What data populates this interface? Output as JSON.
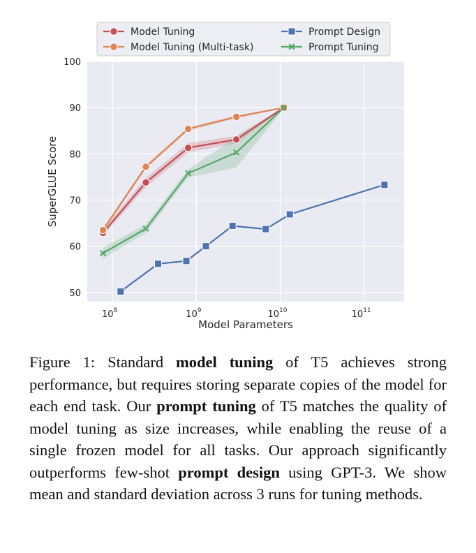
{
  "chart_data": {
    "type": "line",
    "xlabel": "Model Parameters",
    "ylabel": "SuperGLUE Score",
    "x_scale": "log",
    "xlim": [
      50000000,
      300000000000
    ],
    "ylim": [
      48,
      100
    ],
    "x_ticks": [
      {
        "value": 100000000,
        "base": "10",
        "exp": "8"
      },
      {
        "value": 1000000000,
        "base": "10",
        "exp": "9"
      },
      {
        "value": 10000000000,
        "base": "10",
        "exp": "10"
      },
      {
        "value": 100000000000,
        "base": "10",
        "exp": "11"
      }
    ],
    "y_ticks": [
      50,
      60,
      70,
      80,
      90,
      100
    ],
    "grid": true,
    "legend_position": "top",
    "series": [
      {
        "name": "Model Tuning",
        "color": "#c44e52",
        "marker": "circle",
        "x": [
          77000000,
          250000000,
          800000000,
          3000000000,
          11000000000
        ],
        "y": [
          62.9,
          73.8,
          81.3,
          83.1,
          90.0
        ],
        "band_low": [
          62.2,
          72.8,
          80.3,
          82.3,
          89.9
        ],
        "band_high": [
          63.6,
          74.8,
          82.3,
          83.9,
          90.1
        ]
      },
      {
        "name": "Model Tuning (Multi-task)",
        "color": "#dd8452",
        "marker": "circle",
        "x": [
          77000000,
          250000000,
          800000000,
          3000000000,
          11000000000
        ],
        "y": [
          63.5,
          77.2,
          85.4,
          88.0,
          90.0
        ],
        "band_low": [
          63.0,
          76.8,
          85.0,
          87.7,
          89.9
        ],
        "band_high": [
          64.0,
          77.6,
          85.8,
          88.3,
          90.1
        ]
      },
      {
        "name": "Prompt Design",
        "color": "#4c72b0",
        "marker": "square",
        "x": [
          125000000,
          350000000,
          760000000,
          1300000000,
          2700000000,
          6700000000,
          13000000000,
          175000000000
        ],
        "y": [
          50.2,
          56.2,
          56.8,
          60.0,
          64.4,
          63.7,
          66.9,
          73.3
        ]
      },
      {
        "name": "Prompt Tuning",
        "color": "#55a868",
        "marker": "x",
        "x": [
          77000000,
          250000000,
          800000000,
          3000000000,
          11000000000
        ],
        "y": [
          58.5,
          63.8,
          75.8,
          80.3,
          90.0
        ],
        "band_low": [
          57.3,
          62.9,
          74.9,
          77.0,
          89.8
        ],
        "band_high": [
          59.7,
          64.7,
          76.7,
          83.6,
          90.2
        ]
      }
    ]
  },
  "caption": {
    "segments": [
      {
        "text": "Figure 1: Standard ",
        "bold": false
      },
      {
        "text": "model tuning",
        "bold": true
      },
      {
        "text": " of T5 achieves strong performance, but requires storing separate copies of the model for each end task.  Our ",
        "bold": false
      },
      {
        "text": "prompt tuning",
        "bold": true
      },
      {
        "text": " of T5 matches the quality of model tuning as size increases, while enabling the reuse of a single frozen model for all tasks. Our approach significantly outperforms few-shot ",
        "bold": false
      },
      {
        "text": "prompt design",
        "bold": true
      },
      {
        "text": " using GPT-3. We show mean and standard deviation across 3 runs for tuning methods.",
        "bold": false
      }
    ]
  }
}
